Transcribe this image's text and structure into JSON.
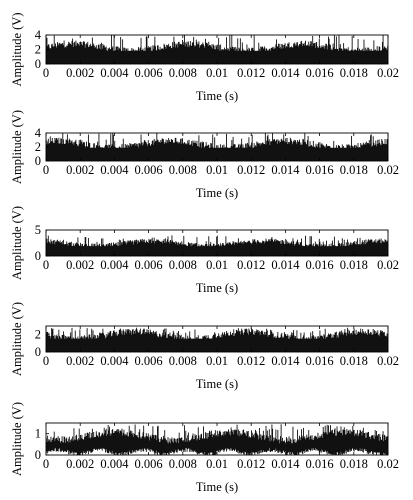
{
  "chart_data": [
    {
      "type": "line",
      "xlabel": "Time (s)",
      "ylabel": "Amplitude (V)",
      "xlim": [
        0,
        0.02
      ],
      "ylim": [
        0,
        4
      ],
      "xticks": [
        "0",
        "0.002",
        "0.004",
        "0.006",
        "0.008",
        "0.01",
        "0.012",
        "0.014",
        "0.016",
        "0.018",
        "0.02"
      ],
      "yticks": [
        "0",
        "2",
        "4"
      ],
      "series": [
        {
          "baseline_min": 0,
          "typical_max": 2.6,
          "peak": 4.1,
          "color": "#111111"
        }
      ]
    },
    {
      "type": "line",
      "xlabel": "Time (s)",
      "ylabel": "Amplitude (V)",
      "xlim": [
        0,
        0.02
      ],
      "ylim": [
        0,
        4
      ],
      "xticks": [
        "0",
        "0.002",
        "0.004",
        "0.006",
        "0.008",
        "0.01",
        "0.012",
        "0.014",
        "0.016",
        "0.018",
        "0.02"
      ],
      "yticks": [
        "0",
        "2",
        "4"
      ],
      "series": [
        {
          "baseline_min": 0,
          "typical_max": 2.7,
          "peak": 4.1,
          "color": "#111111"
        }
      ]
    },
    {
      "type": "line",
      "xlabel": "Time (s)",
      "ylabel": "Amplitude (V)",
      "xlim": [
        0,
        0.02
      ],
      "ylim": [
        0,
        5
      ],
      "xticks": [
        "0",
        "0.002",
        "0.004",
        "0.006",
        "0.008",
        "0.01",
        "0.012",
        "0.014",
        "0.016",
        "0.018",
        "0.02"
      ],
      "yticks": [
        "0",
        "5"
      ],
      "series": [
        {
          "baseline_min": 0,
          "typical_max": 2.7,
          "peak": 4.0,
          "color": "#111111"
        }
      ]
    },
    {
      "type": "line",
      "xlabel": "Time (s)",
      "ylabel": "Amplitude (V)",
      "xlim": [
        0,
        0.02
      ],
      "ylim": [
        0,
        3
      ],
      "xticks": [
        "0",
        "0.002",
        "0.004",
        "0.006",
        "0.008",
        "0.01",
        "0.012",
        "0.014",
        "0.016",
        "0.018",
        "0.02"
      ],
      "yticks": [
        "0",
        "2"
      ],
      "series": [
        {
          "baseline_min": 0,
          "typical_max": 2.2,
          "peak": 2.8,
          "color": "#111111"
        }
      ]
    },
    {
      "type": "line",
      "xlabel": "Time (s)",
      "ylabel": "Amplitude (V)",
      "xlim": [
        0,
        0.02
      ],
      "ylim": [
        0,
        1.5
      ],
      "xticks": [
        "0",
        "0.002",
        "0.004",
        "0.006",
        "0.008",
        "0.01",
        "0.012",
        "0.014",
        "0.016",
        "0.018",
        "0.02"
      ],
      "yticks": [
        "0",
        "1"
      ],
      "series": [
        {
          "baseline_min": 0.2,
          "typical_max": 1.0,
          "peak": 1.45,
          "color": "#111111"
        }
      ]
    }
  ]
}
